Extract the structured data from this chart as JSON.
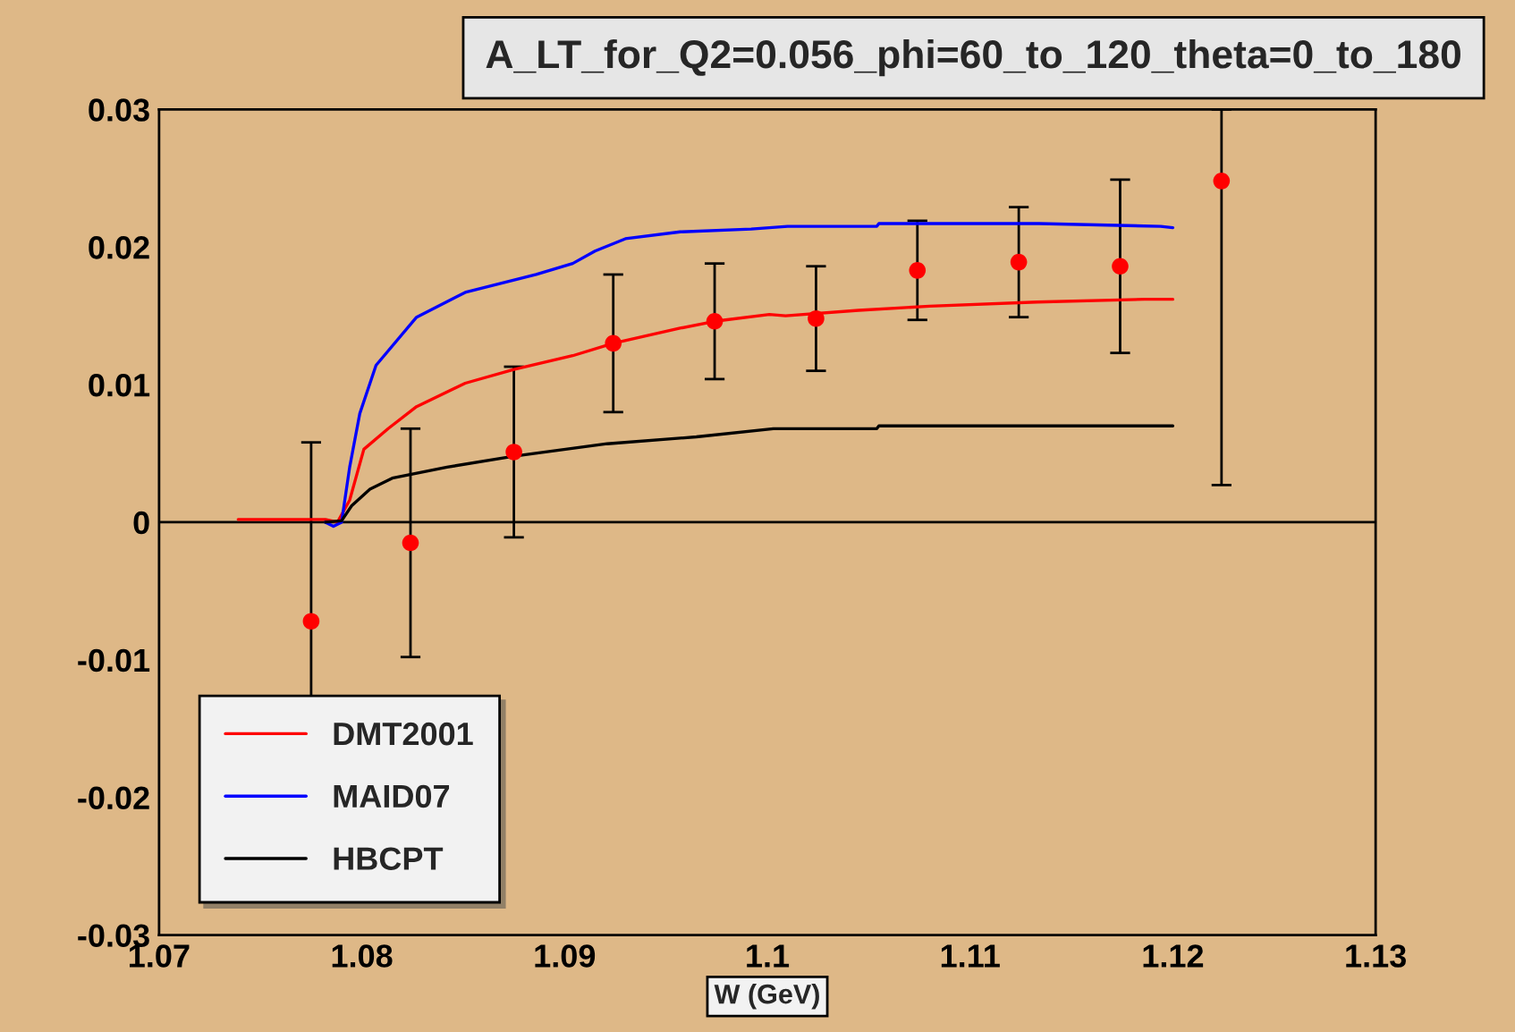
{
  "chart_data": {
    "type": "line",
    "title": "A_LT_for_Q2=0.056_phi=60_to_120_theta=0_to_180",
    "xlabel": "W (GeV)",
    "xlim": [
      1.07,
      1.13
    ],
    "xticks": [
      1.07,
      1.08,
      1.09,
      1.1,
      1.11,
      1.12,
      1.13
    ],
    "ylim": [
      -0.03,
      0.03
    ],
    "yticks": [
      -0.03,
      -0.02,
      -0.01,
      0,
      0.01,
      0.02,
      0.03
    ],
    "grid": false,
    "legend": "bottom left",
    "ref_lines": [
      {
        "axis": "y",
        "value": 0,
        "color": "#000000"
      }
    ],
    "series": [
      {
        "name": "DMT2001",
        "color": "#ff0000",
        "x": [
          1.0739,
          1.0782,
          1.0788,
          1.0794,
          1.0801,
          1.0813,
          1.0827,
          1.0851,
          1.0875,
          1.0904,
          1.0924,
          1.0957,
          1.0974,
          1.1001,
          1.1009,
          1.1045,
          1.108,
          1.1133,
          1.1186,
          1.12
        ],
        "values": [
          0.0002,
          0.0002,
          0,
          0.0016,
          0.0053,
          0.0068,
          0.0084,
          0.0101,
          0.0111,
          0.0121,
          0.013,
          0.0141,
          0.0146,
          0.0151,
          0.015,
          0.0154,
          0.0157,
          0.016,
          0.0162,
          0.0162
        ]
      },
      {
        "name": "MAID07",
        "color": "#0000ff",
        "x": [
          1.0782,
          1.0786,
          1.079,
          1.0794,
          1.0799,
          1.0807,
          1.0827,
          1.0851,
          1.0886,
          1.0904,
          1.0915,
          1.093,
          1.0957,
          1.0992,
          1.101,
          1.1054,
          1.1055,
          1.1104,
          1.1134,
          1.1194,
          1.12
        ],
        "values": [
          0,
          -0.0003,
          0,
          0.004,
          0.0079,
          0.0114,
          0.0149,
          0.0167,
          0.018,
          0.0188,
          0.0197,
          0.0206,
          0.0211,
          0.0213,
          0.0215,
          0.0215,
          0.0217,
          0.0217,
          0.0217,
          0.0215,
          0.0214
        ]
      },
      {
        "name": "HBCPT",
        "color": "#000000",
        "x": [
          1.0782,
          1.079,
          1.0795,
          1.0804,
          1.0815,
          1.0842,
          1.0875,
          1.0921,
          1.0965,
          1.1003,
          1.1054,
          1.1055,
          1.12
        ],
        "values": [
          0,
          0.0001,
          0.0012,
          0.0024,
          0.0032,
          0.004,
          0.0048,
          0.0057,
          0.0062,
          0.0068,
          0.0068,
          0.007,
          0.007
        ]
      },
      {
        "type": "scatter",
        "color": "#ff0000",
        "marker": "circle",
        "x": [
          1.0775,
          1.0824,
          1.0875,
          1.0924,
          1.0974,
          1.1024,
          1.1074,
          1.1124,
          1.1174,
          1.1224
        ],
        "values": [
          -0.0072,
          -0.0015,
          0.0051,
          0.013,
          0.0146,
          0.0148,
          0.0183,
          0.0189,
          0.0186,
          0.0248
        ],
        "errors": [
          0.013,
          0.0083,
          0.0062,
          0.005,
          0.0042,
          0.0038,
          0.0036,
          0.004,
          0.0063,
          [
            0.0027,
            0.03
          ]
        ]
      }
    ]
  }
}
